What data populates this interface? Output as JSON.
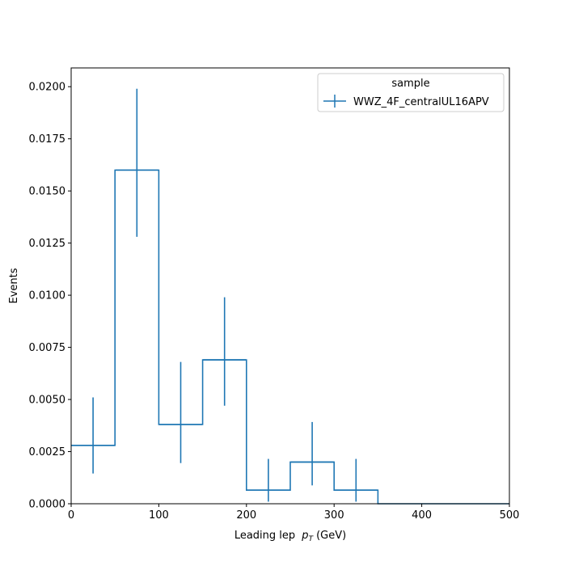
{
  "chart_data": {
    "type": "histogram",
    "xlabel": "Leading lep",
    "xlabel_math": "p",
    "xlabel_sub": "T",
    "xlabel_unit": "(GeV)",
    "ylabel": "Events",
    "xlim": [
      0,
      500
    ],
    "ylim": [
      0,
      0.0209
    ],
    "x_ticks": [
      0,
      100,
      200,
      300,
      400,
      500
    ],
    "x_tick_labels": [
      "0",
      "100",
      "200",
      "300",
      "400",
      "500"
    ],
    "y_ticks": [
      0,
      0.0025,
      0.005,
      0.0075,
      0.01,
      0.0125,
      0.015,
      0.0175,
      0.02
    ],
    "y_tick_labels": [
      "0.0000",
      "0.0025",
      "0.0050",
      "0.0075",
      "0.0100",
      "0.0125",
      "0.0150",
      "0.0175",
      "0.0200"
    ],
    "bin_edges": [
      0,
      50,
      100,
      150,
      200,
      250,
      300,
      350,
      400,
      450,
      500
    ],
    "series": [
      {
        "name": "WWZ_4F_centralUL16APV",
        "color": "#1f77b4",
        "values": [
          0.0028,
          0.016,
          0.0038,
          0.0069,
          0.00065,
          0.002,
          0.00065,
          0,
          0,
          0
        ],
        "err_low": [
          0.00135,
          0.0032,
          0.00185,
          0.0022,
          0.00055,
          0.00112,
          0.00055,
          0,
          0,
          0
        ],
        "err_high": [
          0.0023,
          0.0039,
          0.003,
          0.003,
          0.0015,
          0.00192,
          0.0015,
          0,
          0,
          0
        ]
      }
    ],
    "legend": {
      "title": "sample",
      "position": "upper-right"
    }
  }
}
